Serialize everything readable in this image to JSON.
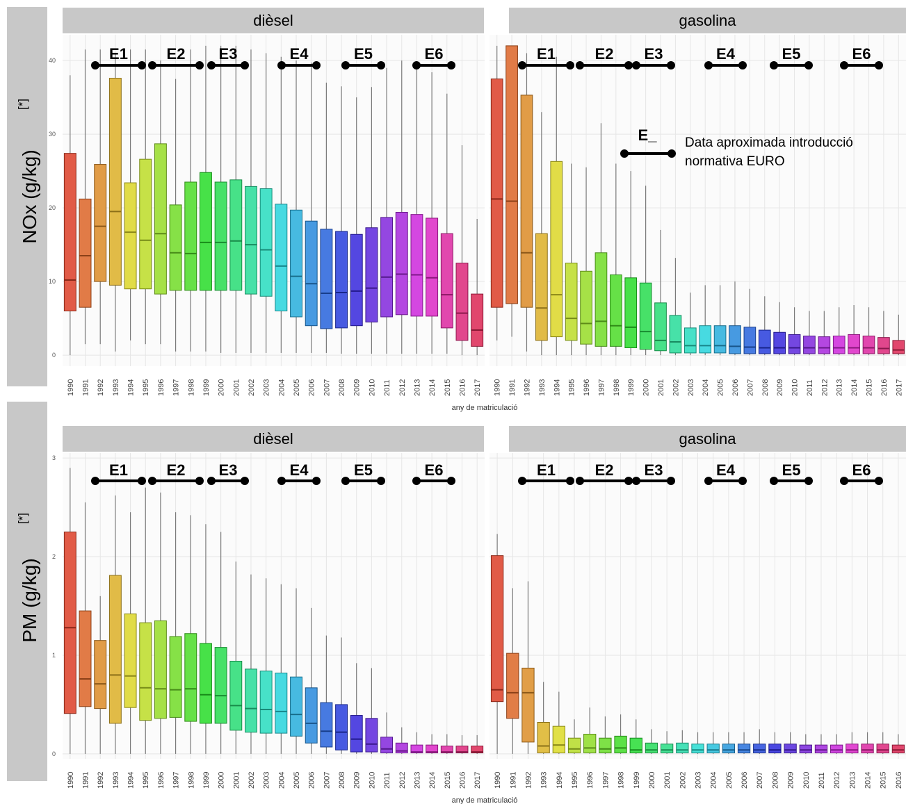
{
  "figure": {
    "rows": [
      {
        "ylabel": "NOx (g/kg)",
        "ylabel_sup": "[*]",
        "xlabel": "any de matriculació"
      },
      {
        "ylabel": "PM (g/kg)",
        "ylabel_sup": "[*]",
        "xlabel": "any de matriculació"
      }
    ],
    "legend": {
      "symbol": "E_",
      "text_line1": "Data aproximada introducció",
      "text_line2": "normativa EURO"
    },
    "euro_norms": [
      "E1",
      "E2",
      "E3",
      "E4",
      "E5",
      "E6"
    ],
    "colors": {
      "strip": "#c8c8c8",
      "panel_bg": "#fbfbfb",
      "grid": "#e6e6e6",
      "whisker": "#7a7a7a",
      "side_label_bg": "#c8c8c8"
    }
  },
  "chart_data": [
    {
      "type": "boxplot",
      "title": "dièsel",
      "ylabel": "NOx (g/kg)",
      "xlabel": "any de matriculació",
      "ylim": [
        -1.5,
        43.5
      ],
      "yticks": [
        0,
        10,
        20,
        30,
        40
      ],
      "categories": [
        "1990",
        "1991",
        "1992",
        "1993",
        "1994",
        "1995",
        "1996",
        "1997",
        "1998",
        "1999",
        "2000",
        "2001",
        "2002",
        "2003",
        "2004",
        "2005",
        "2006",
        "2007",
        "2008",
        "2009",
        "2010",
        "2011",
        "2012",
        "2013",
        "2014",
        "2015",
        "2016",
        "2017"
      ],
      "q1": [
        6,
        6.5,
        10,
        9.5,
        9,
        9,
        8.3,
        8.8,
        8.8,
        8.8,
        8.8,
        8.8,
        8.3,
        8,
        6,
        5.2,
        4,
        3.6,
        3.7,
        4,
        4.5,
        5.2,
        5.5,
        5.3,
        5.3,
        3.7,
        2,
        1.2
      ],
      "median": [
        10.2,
        13.5,
        17.5,
        19.5,
        16.7,
        15.6,
        16.5,
        13.9,
        13.8,
        15.3,
        15.3,
        15.5,
        15,
        14.3,
        12.1,
        10.7,
        9.7,
        8.4,
        8.5,
        8.7,
        9.1,
        10.6,
        11,
        10.9,
        10.5,
        8.2,
        5.7,
        3.4
      ],
      "q3": [
        27.4,
        21.2,
        25.9,
        37.6,
        23.4,
        26.6,
        28.7,
        20.4,
        23.5,
        24.8,
        23.5,
        23.8,
        22.9,
        22.6,
        20.5,
        19.7,
        18.2,
        17.1,
        16.8,
        16.4,
        17.3,
        18.7,
        19.4,
        19.1,
        18.6,
        16.5,
        12.5,
        8.3
      ],
      "whisker_low": [
        0,
        1.5,
        1.5,
        0.5,
        2,
        1.5,
        1.5,
        0.5,
        0.5,
        0.5,
        0.3,
        0.3,
        0.3,
        0.3,
        0.3,
        0.3,
        0.3,
        0.3,
        0.2,
        0.2,
        0.2,
        0.2,
        0.2,
        0.2,
        0.2,
        0.2,
        0,
        0
      ],
      "whisker_high": [
        38,
        41.5,
        41.5,
        41,
        41.5,
        41.5,
        40,
        37.5,
        41.5,
        42,
        42,
        42,
        41.5,
        41,
        40.5,
        40,
        39.7,
        37,
        36.5,
        35,
        36.4,
        39,
        40,
        39.4,
        38.4,
        35.5,
        28.5,
        18.5
      ]
    },
    {
      "type": "boxplot",
      "title": "gasolina",
      "ylabel": "NOx (g/kg)",
      "xlabel": "any de matriculació",
      "ylim": [
        -1.5,
        43.5
      ],
      "yticks": [
        0,
        10,
        20,
        30,
        40
      ],
      "categories": [
        "1990",
        "1991",
        "1992",
        "1993",
        "1994",
        "1995",
        "1996",
        "1997",
        "1998",
        "1999",
        "2000",
        "2001",
        "2002",
        "2003",
        "2004",
        "2005",
        "2006",
        "2007",
        "2008",
        "2009",
        "2010",
        "2011",
        "2012",
        "2013",
        "2014",
        "2015",
        "2016",
        "2017"
      ],
      "q1": [
        6.5,
        7,
        6.5,
        2,
        2.5,
        2,
        1.5,
        1.2,
        1.2,
        1,
        0.8,
        0.6,
        0.3,
        0.3,
        0.3,
        0.3,
        0.2,
        0.2,
        0.2,
        0.2,
        0.2,
        0.2,
        0.2,
        0.2,
        0.2,
        0.2,
        0.2,
        0.2
      ],
      "median": [
        21.2,
        20.9,
        13.9,
        6.4,
        8.2,
        5,
        4.3,
        4.6,
        4,
        3.8,
        3.2,
        2,
        1.8,
        1.3,
        1.3,
        1.3,
        1.2,
        1.1,
        1,
        1,
        1,
        1,
        1,
        1,
        1,
        1,
        0.9,
        0.7
      ],
      "q3": [
        37.5,
        42,
        35.3,
        16.5,
        26.3,
        12.5,
        11.4,
        13.9,
        10.9,
        10.5,
        9.8,
        7.1,
        5.4,
        3.7,
        4,
        4,
        4,
        3.8,
        3.4,
        3.1,
        2.8,
        2.6,
        2.5,
        2.6,
        2.8,
        2.6,
        2.4,
        2
      ],
      "whisker_low": [
        2,
        2.5,
        0.5,
        0,
        0,
        0,
        0,
        0,
        0,
        0,
        0,
        0,
        0,
        0,
        0,
        0,
        0,
        0,
        0,
        0,
        0,
        0,
        0,
        0,
        0,
        0,
        0,
        0
      ],
      "whisker_high": [
        42,
        42,
        41,
        33,
        40.5,
        26,
        25.5,
        31.5,
        26,
        25,
        23,
        17,
        13.2,
        8.5,
        9.5,
        9.5,
        10,
        9,
        8,
        7.2,
        6.5,
        6,
        6,
        6.5,
        6.8,
        6.5,
        6,
        5.5
      ]
    },
    {
      "type": "boxplot",
      "title": "dièsel",
      "ylabel": "PM (g/kg)",
      "xlabel": "any de matriculació",
      "ylim": [
        -0.05,
        3.05
      ],
      "yticks": [
        0,
        1,
        2,
        3
      ],
      "categories": [
        "1990",
        "1991",
        "1992",
        "1993",
        "1994",
        "1995",
        "1996",
        "1997",
        "1998",
        "1999",
        "2000",
        "2001",
        "2002",
        "2003",
        "2004",
        "2005",
        "2006",
        "2007",
        "2008",
        "2009",
        "2010",
        "2011",
        "2012",
        "2013",
        "2014",
        "2015",
        "2016",
        "2017"
      ],
      "q1": [
        0.41,
        0.48,
        0.46,
        0.31,
        0.47,
        0.34,
        0.36,
        0.37,
        0.33,
        0.31,
        0.31,
        0.24,
        0.22,
        0.21,
        0.21,
        0.18,
        0.11,
        0.07,
        0.04,
        0.02,
        0.02,
        0.01,
        0.01,
        0.01,
        0.01,
        0.01,
        0.01,
        0.01
      ],
      "median": [
        1.28,
        0.76,
        0.71,
        0.8,
        0.79,
        0.67,
        0.66,
        0.65,
        0.66,
        0.6,
        0.59,
        0.49,
        0.46,
        0.45,
        0.43,
        0.4,
        0.31,
        0.23,
        0.22,
        0.15,
        0.1,
        0.05,
        0.03,
        0.02,
        0.02,
        0.02,
        0.02,
        0.02
      ],
      "q3": [
        2.25,
        1.45,
        1.15,
        1.81,
        1.42,
        1.33,
        1.35,
        1.19,
        1.22,
        1.12,
        1.08,
        0.94,
        0.86,
        0.84,
        0.82,
        0.78,
        0.67,
        0.52,
        0.5,
        0.39,
        0.36,
        0.17,
        0.11,
        0.09,
        0.09,
        0.08,
        0.08,
        0.08
      ],
      "whisker_low": [
        0,
        0,
        0,
        0,
        0,
        0,
        0,
        0,
        0,
        0,
        0,
        0,
        0,
        0,
        0,
        0,
        0,
        0,
        0,
        0,
        0,
        0,
        0,
        0,
        0,
        0,
        0,
        0
      ],
      "whisker_high": [
        2.9,
        2.55,
        1.6,
        2.62,
        2.45,
        2.7,
        2.65,
        2.45,
        2.42,
        2.33,
        2.25,
        1.95,
        1.82,
        1.78,
        1.72,
        1.68,
        1.48,
        1.2,
        1.18,
        0.92,
        0.87,
        0.42,
        0.27,
        0.22,
        0.2,
        0.2,
        0.19,
        0.19
      ]
    },
    {
      "type": "boxplot",
      "title": "gasolina",
      "ylabel": "PM (g/kg)",
      "xlabel": "any de matriculació",
      "ylim": [
        -0.05,
        3.05
      ],
      "yticks": [
        0,
        1,
        2,
        3
      ],
      "categories": [
        "1990",
        "1991",
        "1992",
        "1993",
        "1994",
        "1995",
        "1996",
        "1997",
        "1998",
        "1999",
        "2000",
        "2001",
        "2002",
        "2003",
        "2004",
        "2005",
        "2006",
        "2007",
        "2008",
        "2009",
        "2010",
        "2011",
        "2012",
        "2013",
        "2014",
        "2015",
        "2016"
      ],
      "q1": [
        0.53,
        0.36,
        0.12,
        0.01,
        0.01,
        0.01,
        0.01,
        0.01,
        0.01,
        0.01,
        0.01,
        0.01,
        0.01,
        0.01,
        0.01,
        0.01,
        0.01,
        0.01,
        0.01,
        0.01,
        0.01,
        0.01,
        0.01,
        0.01,
        0.01,
        0.01,
        0.01
      ],
      "median": [
        0.65,
        0.62,
        0.62,
        0.08,
        0.09,
        0.05,
        0.06,
        0.05,
        0.06,
        0.04,
        0.04,
        0.04,
        0.04,
        0.04,
        0.04,
        0.04,
        0.04,
        0.04,
        0.04,
        0.04,
        0.04,
        0.04,
        0.04,
        0.04,
        0.04,
        0.04,
        0.04
      ],
      "q3": [
        2.01,
        1.02,
        0.87,
        0.32,
        0.28,
        0.16,
        0.2,
        0.16,
        0.18,
        0.16,
        0.11,
        0.1,
        0.11,
        0.1,
        0.1,
        0.1,
        0.1,
        0.1,
        0.1,
        0.1,
        0.09,
        0.09,
        0.09,
        0.1,
        0.1,
        0.1,
        0.09
      ],
      "whisker_low": [
        0,
        0,
        0,
        0,
        0,
        0,
        0,
        0,
        0,
        0,
        0,
        0,
        0,
        0,
        0,
        0,
        0,
        0,
        0,
        0,
        0,
        0,
        0,
        0,
        0,
        0,
        0
      ],
      "whisker_high": [
        2.23,
        1.68,
        1.75,
        0.73,
        0.63,
        0.35,
        0.47,
        0.38,
        0.4,
        0.35,
        0.25,
        0.23,
        0.24,
        0.22,
        0.22,
        0.22,
        0.22,
        0.25,
        0.22,
        0.22,
        0.2,
        0.2,
        0.2,
        0.22,
        0.22,
        0.22,
        0.2
      ]
    }
  ]
}
